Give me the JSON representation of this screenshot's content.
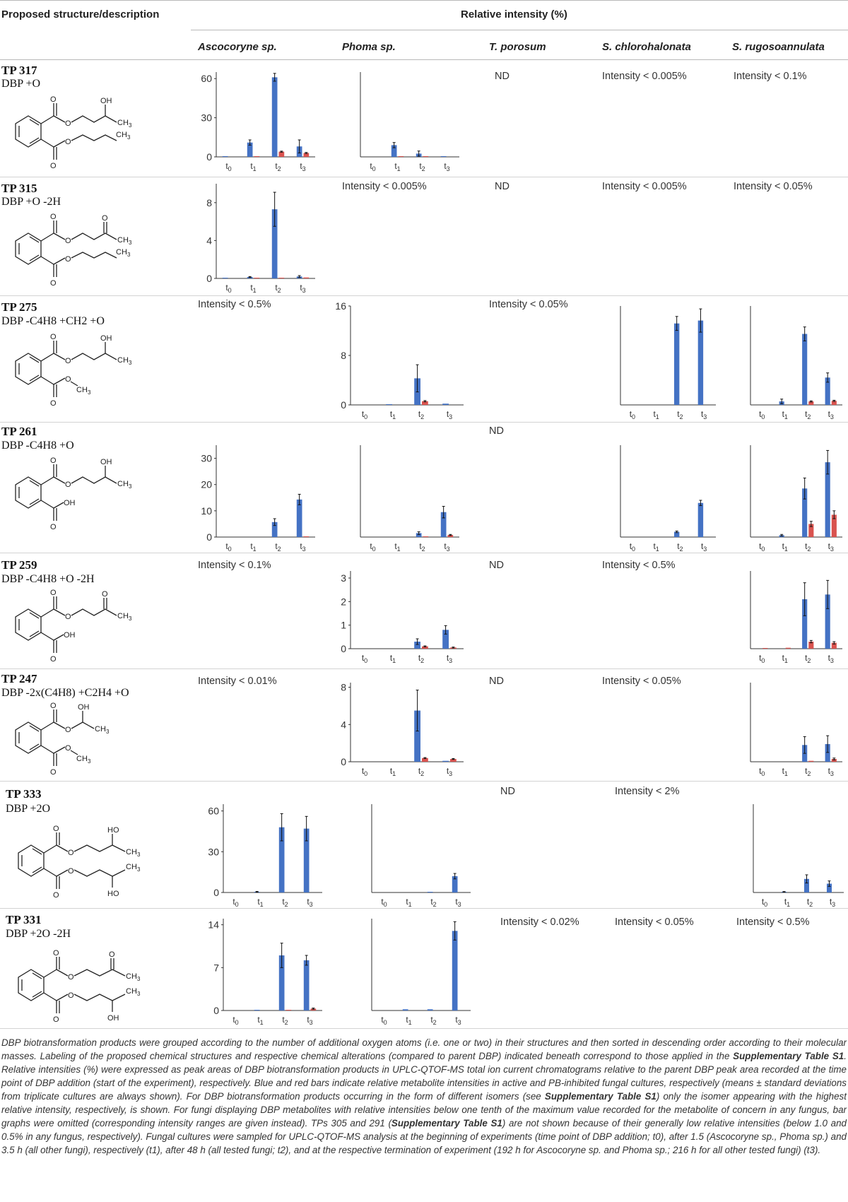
{
  "header": {
    "col1": "Proposed structure/description",
    "col2": "Relative intensity (%)",
    "organisms": [
      "Ascocoryne sp.",
      "Phoma sp.",
      "T. porosum",
      "S. chlorohalonata",
      "S. rugosoannulata"
    ]
  },
  "time_labels": [
    "t0",
    "t1",
    "t2",
    "t3"
  ],
  "colors": {
    "active": "#4472c4",
    "inhibited": "#d9534f",
    "axis": "#333333"
  },
  "rows": [
    {
      "id": "TP 317",
      "desc": "DBP +O",
      "structure": "oh-butyl / butyl"
    },
    {
      "id": "TP 315",
      "desc": "DBP +O -2H",
      "structure": "oxo-butyl / butyl"
    },
    {
      "id": "TP 275",
      "desc": "DBP -C4H8 +CH2 +O",
      "structure": "oh-butyl / methyl"
    },
    {
      "id": "TP 261",
      "desc": "DBP -C4H8 +O",
      "structure": "oh-butyl / acid"
    },
    {
      "id": "TP 259",
      "desc": "DBP -C4H8 +O -2H",
      "structure": "oxo-butyl / acid"
    },
    {
      "id": "TP 247",
      "desc": "DBP -2x(C4H8) +C2H4 +O",
      "structure": "hydroxyethyl / methyl"
    },
    {
      "id": "TP 333",
      "desc": "DBP +2O",
      "structure": "oh-butyl / oh-butyl"
    },
    {
      "id": "TP 331",
      "desc": "DBP +2O -2H",
      "structure": "oxo-butyl / oh-butyl"
    }
  ],
  "notes": {
    "r0_t": "ND",
    "r0_c": "Intensity < 0.005%",
    "r0_r": "Intensity < 0.1%",
    "r1_p": "Intensity < 0.005%",
    "r1_t": "ND",
    "r1_c": "Intensity < 0.005%",
    "r1_r": "Intensity < 0.05%",
    "r2_a": "Intensity < 0.5%",
    "r2_t": "Intensity < 0.05%",
    "r3_t": "ND",
    "r4_a": "Intensity < 0.1%",
    "r4_t": "ND",
    "r4_c": "Intensity < 0.5%",
    "r5_a": "Intensity < 0.01%",
    "r5_t": "ND",
    "r5_c": "Intensity < 0.05%",
    "r6_t": "ND",
    "r6_c": "Intensity < 2%",
    "r7_t": "Intensity < 0.02%",
    "r7_c": "Intensity < 0.05%",
    "r7_r": "Intensity < 0.5%"
  },
  "caption": [
    {
      "t": "DBP biotransformation products were grouped according to the number of additional oxygen atoms (i.e. one or two) in their structures and then sorted in descending order according to their molecular masses. Labeling of the proposed chemical structures and respective chemical alterations (compared to parent DBP) indicated beneath correspond to those applied in the "
    },
    {
      "t": "Supplementary Table S1",
      "b": true
    },
    {
      "t": ". Relative intensities (%) were expressed as peak areas of DBP biotransformation products in UPLC-QTOF-MS total ion current chromatograms relative to the parent DBP peak area recorded at the time point of DBP addition (start of the experiment), respectively. Blue and red bars indicate relative metabolite intensities in active and PB-inhibited fungal cultures, respectively (means ± standard deviations from triplicate cultures are always shown). For DBP biotransformation products occurring in the form of different isomers (see "
    },
    {
      "t": "Supplementary Table S1",
      "b": true
    },
    {
      "t": ") only the isomer appearing with the highest relative intensity, respectively, is shown. For fungi displaying DBP metabolites with relative intensities below one tenth of the maximum value recorded for the metabolite of concern in any fungus, bar graphs were omitted (corresponding intensity ranges are given instead). TPs 305 and 291 ("
    },
    {
      "t": "Supplementary Table S1",
      "b": true
    },
    {
      "t": ") are not shown because of their generally low relative intensities (below 1.0 and 0.5% in any fungus, respectively). Fungal cultures were sampled for UPLC-QTOF-MS analysis at the beginning of experiments (time point of DBP addition; t0), after 1.5 (Ascocoryne sp., Phoma sp.) and 3.5 h (all other fungi), respectively (t1), after 48 h (all tested fungi; t2), and at the respective termination of experiment (192 h for Ascocoryne sp. and Phoma sp.; 216 h for all other tested fungi) (t3)."
    }
  ],
  "chart_data": [
    {
      "id": "c317a",
      "type": "bar",
      "row": "TP 317",
      "organism": "Ascocoryne sp.",
      "categories": [
        "t0",
        "t1",
        "t2",
        "t3"
      ],
      "ylim": [
        0,
        65
      ],
      "ticks": [
        "0",
        "30",
        "60"
      ],
      "series": [
        {
          "name": "active",
          "values": [
            0.2,
            11,
            61,
            8
          ],
          "err": [
            0,
            2,
            3,
            5
          ]
        },
        {
          "name": "PB-inhibited",
          "values": [
            0,
            0.3,
            4,
            3
          ],
          "err": [
            0,
            0,
            0.4,
            0.4
          ]
        }
      ]
    },
    {
      "id": "c317p",
      "type": "bar",
      "row": "TP 317",
      "organism": "Phoma sp.",
      "categories": [
        "t0",
        "t1",
        "t2",
        "t3"
      ],
      "ylim": [
        0,
        65
      ],
      "ticks": [],
      "series": [
        {
          "name": "active",
          "values": [
            0,
            9,
            2.5,
            0.3
          ],
          "err": [
            0,
            2,
            2,
            0
          ]
        },
        {
          "name": "PB-inhibited",
          "values": [
            0,
            0.3,
            0.5,
            0
          ],
          "err": [
            0,
            0,
            0,
            0
          ]
        }
      ]
    },
    {
      "id": "c315a",
      "type": "bar",
      "row": "TP 315",
      "organism": "Ascocoryne sp.",
      "categories": [
        "t0",
        "t1",
        "t2",
        "t3"
      ],
      "ylim": [
        0,
        10
      ],
      "ticks": [
        "0",
        "4",
        "8"
      ],
      "series": [
        {
          "name": "active",
          "values": [
            0.05,
            0.15,
            7.3,
            0.2
          ],
          "err": [
            0,
            0.05,
            1.8,
            0.1
          ]
        },
        {
          "name": "PB-inhibited",
          "values": [
            0,
            0.05,
            0.05,
            0.1
          ],
          "err": [
            0,
            0,
            0,
            0
          ]
        }
      ]
    },
    {
      "id": "c275p",
      "type": "bar",
      "row": "TP 275",
      "organism": "Phoma sp.",
      "categories": [
        "t0",
        "t1",
        "t2",
        "t3"
      ],
      "ylim": [
        0,
        16
      ],
      "ticks": [
        "0",
        "8",
        "16"
      ],
      "series": [
        {
          "name": "active",
          "values": [
            0,
            0.1,
            4.3,
            0.2
          ],
          "err": [
            0,
            0,
            2.2,
            0
          ]
        },
        {
          "name": "PB-inhibited",
          "values": [
            0,
            0,
            0.6,
            0
          ],
          "err": [
            0,
            0,
            0.1,
            0
          ]
        }
      ]
    },
    {
      "id": "c275c",
      "type": "bar",
      "row": "TP 275",
      "organism": "S. chlorohalonata",
      "categories": [
        "t0",
        "t1",
        "t2",
        "t3"
      ],
      "ylim": [
        0,
        17
      ],
      "ticks": [],
      "series": [
        {
          "name": "active",
          "values": [
            0,
            0,
            14,
            14.5
          ],
          "err": [
            0,
            0,
            1.2,
            2
          ]
        },
        {
          "name": "PB-inhibited",
          "values": [
            0,
            0,
            0,
            0
          ],
          "err": [
            0,
            0,
            0,
            0
          ]
        }
      ]
    },
    {
      "id": "c275r",
      "type": "bar",
      "row": "TP 275",
      "organism": "S. rugosoannulata",
      "categories": [
        "t0",
        "t1",
        "t2",
        "t3"
      ],
      "ylim": [
        0,
        17
      ],
      "ticks": [],
      "series": [
        {
          "name": "active",
          "values": [
            0,
            0.6,
            12.2,
            4.7
          ],
          "err": [
            0,
            0.4,
            1.2,
            0.8
          ]
        },
        {
          "name": "PB-inhibited",
          "values": [
            0,
            0,
            0.6,
            0.7
          ],
          "err": [
            0,
            0,
            0.1,
            0.1
          ]
        }
      ]
    },
    {
      "id": "c261a",
      "type": "bar",
      "row": "TP 261",
      "organism": "Ascocoryne sp.",
      "categories": [
        "t0",
        "t1",
        "t2",
        "t3"
      ],
      "ylim": [
        0,
        35
      ],
      "ticks": [
        "0",
        "10",
        "20",
        "30"
      ],
      "series": [
        {
          "name": "active",
          "values": [
            0,
            0,
            5.7,
            14.3
          ],
          "err": [
            0,
            0,
            1.3,
            2
          ]
        },
        {
          "name": "PB-inhibited",
          "values": [
            0,
            0,
            0,
            0.1
          ],
          "err": [
            0,
            0,
            0,
            0
          ]
        }
      ]
    },
    {
      "id": "c261p",
      "type": "bar",
      "row": "TP 261",
      "organism": "Phoma sp.",
      "categories": [
        "t0",
        "t1",
        "t2",
        "t3"
      ],
      "ylim": [
        0,
        35
      ],
      "ticks": [],
      "series": [
        {
          "name": "active",
          "values": [
            0,
            0,
            1.5,
            9.5
          ],
          "err": [
            0,
            0,
            0.5,
            2.2
          ]
        },
        {
          "name": "PB-inhibited",
          "values": [
            0,
            0,
            0.2,
            0.8
          ],
          "err": [
            0,
            0,
            0,
            0.2
          ]
        }
      ]
    },
    {
      "id": "c261c",
      "type": "bar",
      "row": "TP 261",
      "organism": "S. chlorohalonata",
      "categories": [
        "t0",
        "t1",
        "t2",
        "t3"
      ],
      "ylim": [
        0,
        35
      ],
      "ticks": [],
      "series": [
        {
          "name": "active",
          "values": [
            0,
            0,
            2,
            13
          ],
          "err": [
            0,
            0,
            0.3,
            1
          ]
        },
        {
          "name": "PB-inhibited",
          "values": [
            0,
            0,
            0,
            0
          ],
          "err": [
            0,
            0,
            0,
            0
          ]
        }
      ]
    },
    {
      "id": "c261r",
      "type": "bar",
      "row": "TP 261",
      "organism": "S. rugosoannulata",
      "categories": [
        "t0",
        "t1",
        "t2",
        "t3"
      ],
      "ylim": [
        0,
        35
      ],
      "ticks": [],
      "series": [
        {
          "name": "active",
          "values": [
            0,
            0.7,
            18.5,
            28.5
          ],
          "err": [
            0,
            0.3,
            4,
            4.5
          ]
        },
        {
          "name": "PB-inhibited",
          "values": [
            0,
            0,
            5,
            8.5
          ],
          "err": [
            0,
            0,
            1,
            1.5
          ]
        }
      ]
    },
    {
      "id": "c259p",
      "type": "bar",
      "row": "TP 259",
      "organism": "Phoma sp.",
      "categories": [
        "t0",
        "t1",
        "t2",
        "t3"
      ],
      "ylim": [
        0,
        3.3
      ],
      "ticks": [
        "0",
        "1",
        "2",
        "3"
      ],
      "series": [
        {
          "name": "active",
          "values": [
            0,
            0,
            0.3,
            0.8
          ],
          "err": [
            0,
            0,
            0.12,
            0.18
          ]
        },
        {
          "name": "PB-inhibited",
          "values": [
            0,
            0,
            0.1,
            0.05
          ],
          "err": [
            0,
            0,
            0.02,
            0.02
          ]
        }
      ]
    },
    {
      "id": "c259r",
      "type": "bar",
      "row": "TP 259",
      "organism": "S. rugosoannulata",
      "categories": [
        "t0",
        "t1",
        "t2",
        "t3"
      ],
      "ylim": [
        0,
        3.3
      ],
      "ticks": [],
      "series": [
        {
          "name": "active",
          "values": [
            0,
            0,
            2.1,
            2.3
          ],
          "err": [
            0,
            0,
            0.7,
            0.6
          ]
        },
        {
          "name": "PB-inhibited",
          "values": [
            0.03,
            0.04,
            0.3,
            0.25
          ],
          "err": [
            0,
            0,
            0.05,
            0.05
          ]
        }
      ]
    },
    {
      "id": "c247p",
      "type": "bar",
      "row": "TP 247",
      "organism": "Phoma sp.",
      "categories": [
        "t0",
        "t1",
        "t2",
        "t3"
      ],
      "ylim": [
        0,
        8.5
      ],
      "ticks": [
        "0",
        "4",
        "8"
      ],
      "series": [
        {
          "name": "active",
          "values": [
            0,
            0,
            5.5,
            0.1
          ],
          "err": [
            0,
            0,
            2.2,
            0
          ]
        },
        {
          "name": "PB-inhibited",
          "values": [
            0,
            0,
            0.4,
            0.3
          ],
          "err": [
            0,
            0,
            0.05,
            0.05
          ]
        }
      ]
    },
    {
      "id": "c247r",
      "type": "bar",
      "row": "TP 247",
      "organism": "S. rugosoannulata",
      "categories": [
        "t0",
        "t1",
        "t2",
        "t3"
      ],
      "ylim": [
        0,
        8.5
      ],
      "ticks": [],
      "series": [
        {
          "name": "active",
          "values": [
            0,
            0,
            1.8,
            1.9
          ],
          "err": [
            0,
            0,
            0.9,
            0.9
          ]
        },
        {
          "name": "PB-inhibited",
          "values": [
            0,
            0,
            0.1,
            0.3
          ],
          "err": [
            0,
            0,
            0,
            0.1
          ]
        }
      ]
    },
    {
      "id": "c333a",
      "type": "bar",
      "row": "TP 333",
      "organism": "Ascocoryne sp.",
      "categories": [
        "t0",
        "t1",
        "t2",
        "t3"
      ],
      "ylim": [
        0,
        65
      ],
      "ticks": [
        "0",
        "30",
        "60"
      ],
      "series": [
        {
          "name": "active",
          "values": [
            0,
            0.5,
            48,
            47
          ],
          "err": [
            0,
            0.3,
            10,
            9
          ]
        },
        {
          "name": "PB-inhibited",
          "values": [
            0,
            0,
            0,
            0
          ],
          "err": [
            0,
            0,
            0,
            0
          ]
        }
      ]
    },
    {
      "id": "c333p",
      "type": "bar",
      "row": "TP 333",
      "organism": "Phoma sp.",
      "categories": [
        "t0",
        "t1",
        "t2",
        "t3"
      ],
      "ylim": [
        0,
        65
      ],
      "ticks": [],
      "series": [
        {
          "name": "active",
          "values": [
            0,
            0,
            0.3,
            12
          ],
          "err": [
            0,
            0,
            0,
            2
          ]
        },
        {
          "name": "PB-inhibited",
          "values": [
            0,
            0,
            0,
            0
          ],
          "err": [
            0,
            0,
            0,
            0
          ]
        }
      ]
    },
    {
      "id": "c333r",
      "type": "bar",
      "row": "TP 333",
      "organism": "S. rugosoannulata",
      "categories": [
        "t0",
        "t1",
        "t2",
        "t3"
      ],
      "ylim": [
        0,
        65
      ],
      "ticks": [],
      "series": [
        {
          "name": "active",
          "values": [
            0,
            0.5,
            10,
            6.5
          ],
          "err": [
            0,
            0.2,
            3,
            2
          ]
        },
        {
          "name": "PB-inhibited",
          "values": [
            0,
            0,
            0,
            0
          ],
          "err": [
            0,
            0,
            0,
            0
          ]
        }
      ]
    },
    {
      "id": "c331a",
      "type": "bar",
      "row": "TP 331",
      "organism": "Ascocoryne sp.",
      "categories": [
        "t0",
        "t1",
        "t2",
        "t3"
      ],
      "ylim": [
        0,
        15
      ],
      "ticks": [
        "0",
        "7",
        "14"
      ],
      "series": [
        {
          "name": "active",
          "values": [
            0,
            0.1,
            9,
            8.2
          ],
          "err": [
            0,
            0,
            2,
            0.8
          ]
        },
        {
          "name": "PB-inhibited",
          "values": [
            0,
            0,
            0.1,
            0.3
          ],
          "err": [
            0,
            0,
            0,
            0.1
          ]
        }
      ]
    },
    {
      "id": "c331p",
      "type": "bar",
      "row": "TP 331",
      "organism": "Phoma sp.",
      "categories": [
        "t0",
        "t1",
        "t2",
        "t3"
      ],
      "ylim": [
        0,
        15
      ],
      "ticks": [],
      "series": [
        {
          "name": "active",
          "values": [
            0,
            0.2,
            0.2,
            13
          ],
          "err": [
            0,
            0,
            0,
            1.5
          ]
        },
        {
          "name": "PB-inhibited",
          "values": [
            0,
            0,
            0,
            0
          ],
          "err": [
            0,
            0,
            0,
            0
          ]
        }
      ]
    }
  ]
}
